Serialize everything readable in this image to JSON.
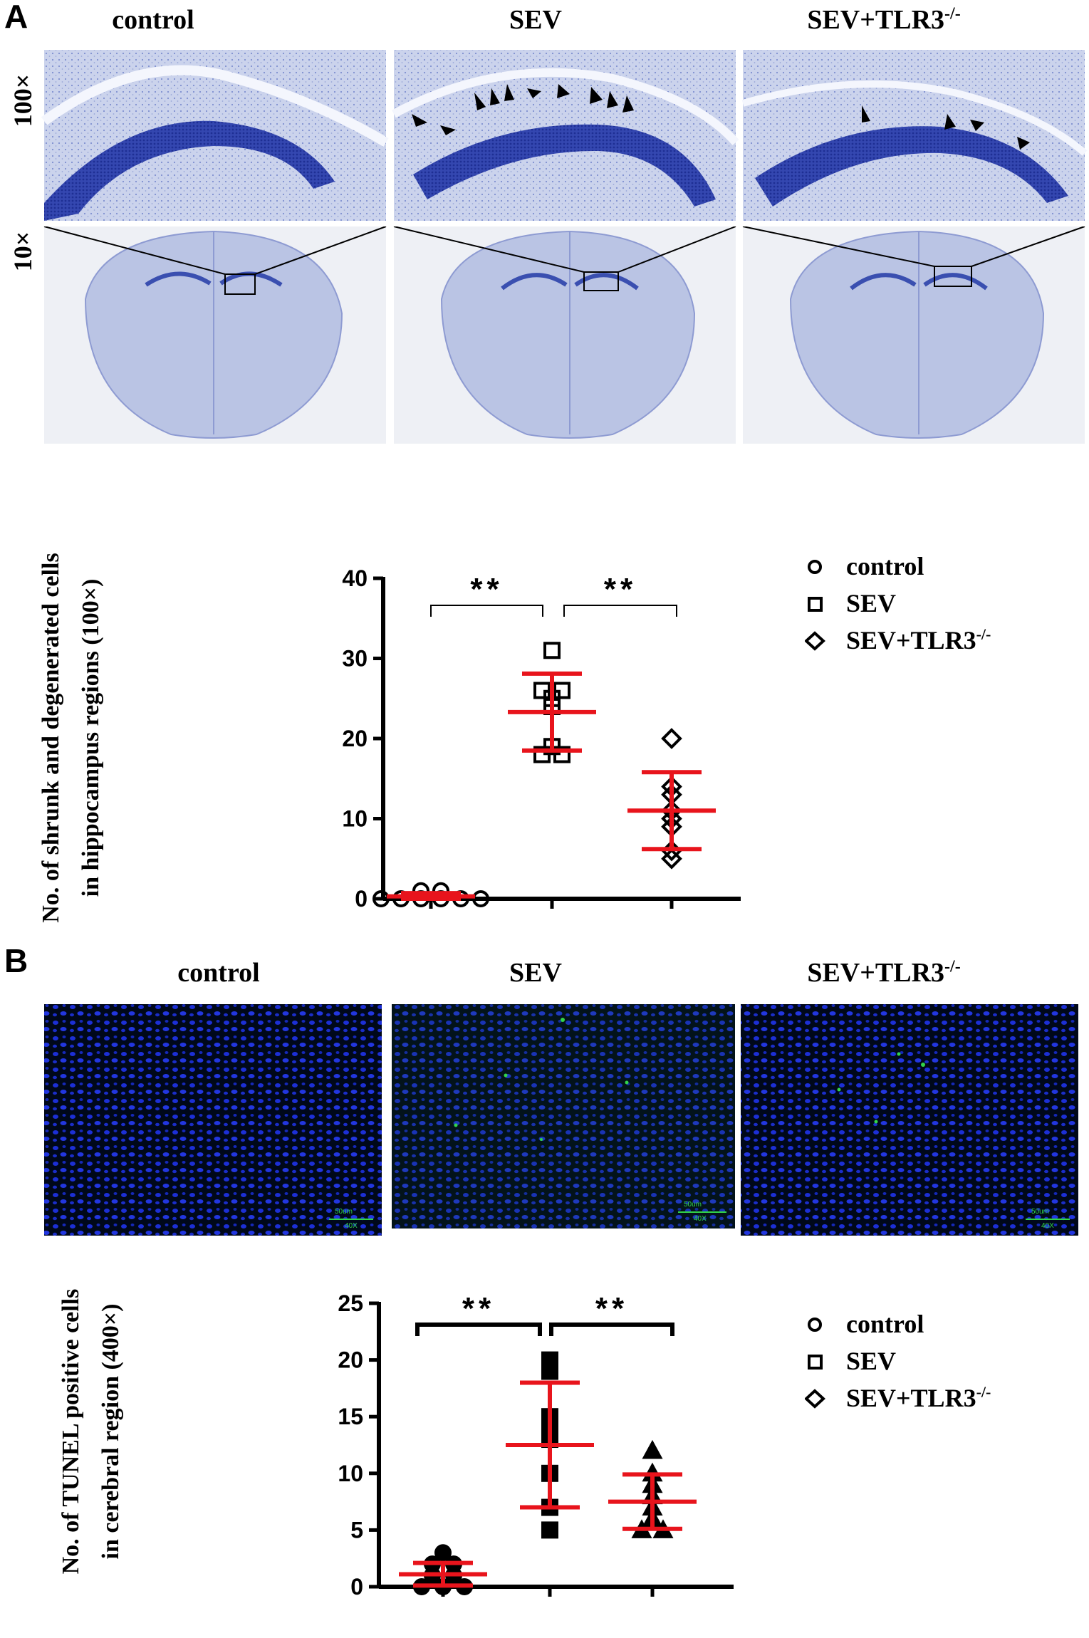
{
  "panels": {
    "a": {
      "letter": "A",
      "columns": [
        "control",
        "SEV",
        "SEV+TLR3"
      ],
      "tlr3_sup": "-/-",
      "rows": [
        "100×",
        "10×"
      ]
    },
    "b": {
      "letter": "B",
      "columns": [
        "control",
        "SEV",
        "SEV+TLR3"
      ],
      "tlr3_sup": "-/-",
      "micro_scale": "50um",
      "micro_mag": "40X"
    }
  },
  "legend": {
    "a": {
      "control": "control",
      "sev": "SEV",
      "sev_tlr3": "SEV+TLR3",
      "sup": "-/-"
    },
    "b": {
      "control": "control",
      "sev": "SEV",
      "sev_tlr3": "SEV+TLR3",
      "sup": "-/-"
    }
  },
  "colors": {
    "mean_sd": "#e8141c",
    "marker": "#000000",
    "nissl_bg": "#cfd6ec",
    "nissl_dark": "#3a4fb0",
    "fluor_bg": "#00081a",
    "fluor_nuclei": "#1c2fd6",
    "fluor_positive": "#32d44a"
  },
  "chart_data": [
    {
      "type": "scatter",
      "title": "",
      "ylabel_line1": "No. of shrunk and degenerated cells",
      "ylabel_line2": "in hippocampus regions (100×)",
      "ylim": [
        0,
        40
      ],
      "yticks": [
        0,
        10,
        20,
        30,
        40
      ],
      "significance": [
        "**",
        "**"
      ],
      "series": [
        {
          "name": "control",
          "marker": "circle",
          "values": [
            0,
            0,
            0,
            0,
            1,
            1,
            0,
            0
          ],
          "mean": 0.3,
          "sd": 0.4
        },
        {
          "name": "SEV",
          "marker": "square",
          "values": [
            31,
            26,
            26,
            25,
            24,
            19,
            18,
            18
          ],
          "mean": 23.3,
          "sd": 4.8
        },
        {
          "name": "SEV+TLR3-/-",
          "marker": "diamond",
          "values": [
            20,
            14,
            13,
            11,
            10,
            9,
            6,
            5
          ],
          "mean": 11,
          "sd": 4.8
        }
      ]
    },
    {
      "type": "scatter",
      "title": "",
      "ylabel_line1": "No. of TUNEL positive cells",
      "ylabel_line2": "in cerebral region (400×)",
      "ylim": [
        0,
        25
      ],
      "yticks": [
        0,
        5,
        10,
        15,
        20,
        25
      ],
      "significance": [
        "**",
        "**"
      ],
      "series": [
        {
          "name": "control",
          "marker": "circle",
          "values": [
            3,
            2,
            2,
            1,
            1,
            0,
            0,
            0
          ],
          "mean": 1.1,
          "sd": 1.0
        },
        {
          "name": "SEV",
          "marker": "square",
          "values": [
            20,
            19,
            15,
            14,
            13,
            10,
            7,
            5
          ],
          "mean": 12.5,
          "sd": 5.5
        },
        {
          "name": "SEV+TLR3-/-",
          "marker": "triangle",
          "values": [
            12,
            10,
            9,
            8,
            7,
            6,
            5,
            5
          ],
          "mean": 7.5,
          "sd": 2.4
        }
      ]
    }
  ]
}
